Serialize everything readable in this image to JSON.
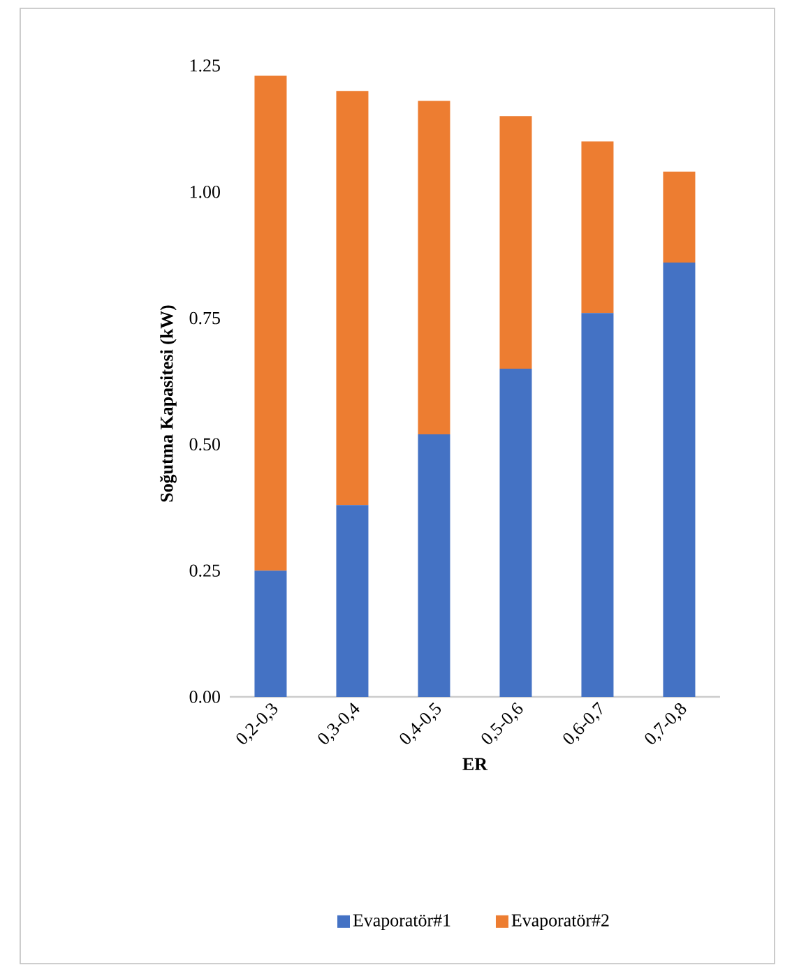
{
  "chart_data": {
    "type": "bar",
    "stacked": true,
    "xlabel": "ER",
    "ylabel": "Soğutma Kapasitesi (kW)",
    "categories": [
      "0,2-0,3",
      "0,3-0,4",
      "0,4-0,5",
      "0,5-0,6",
      "0,6-0,7",
      "0,7-0,8"
    ],
    "series": [
      {
        "name": "Evaporatör#1",
        "color": "#4472c4",
        "values": [
          0.25,
          0.38,
          0.52,
          0.65,
          0.76,
          0.86
        ]
      },
      {
        "name": "Evaporatör#2",
        "color": "#ed7d31",
        "values": [
          0.98,
          0.82,
          0.66,
          0.5,
          0.34,
          0.18
        ]
      }
    ],
    "ylim": [
      0,
      1.25
    ],
    "yticks": [
      {
        "value": 0,
        "label": "0.00"
      },
      {
        "value": 0.25,
        "label": "0.25"
      },
      {
        "value": 0.5,
        "label": "0.50"
      },
      {
        "value": 0.75,
        "label": "0.75"
      },
      {
        "value": 1,
        "label": "1.00"
      },
      {
        "value": 1.25,
        "label": "1.25"
      }
    ],
    "legend": "bottom"
  }
}
